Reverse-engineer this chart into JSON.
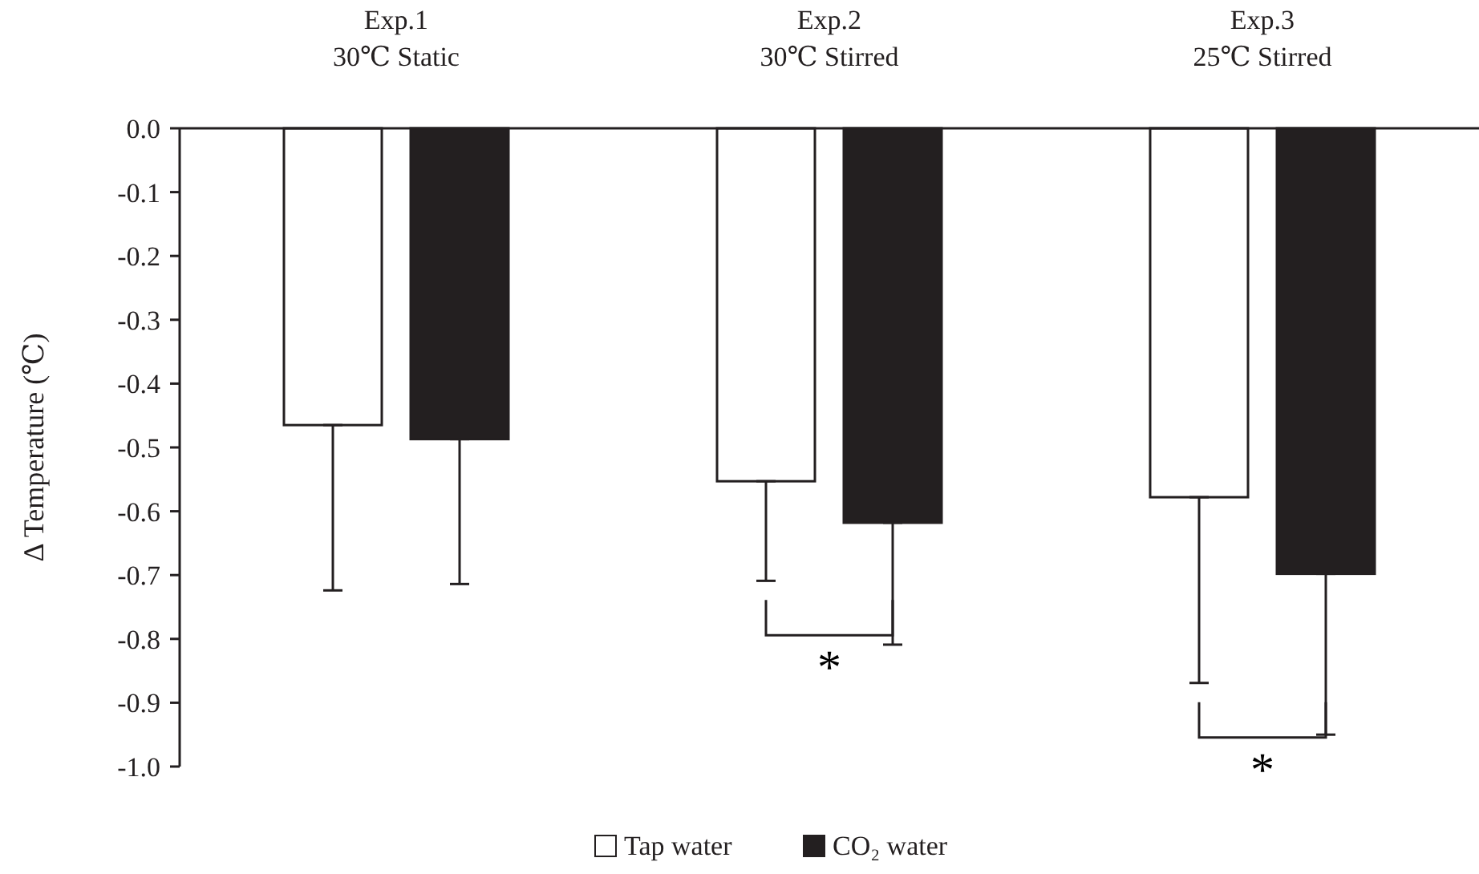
{
  "chart_data": {
    "type": "bar",
    "ylabel": "Δ Temperature (℃)",
    "categories": [
      "Exp.1\n30℃ Static",
      "Exp.2\n30℃ Stirred",
      "Exp.3\n25℃ Stirred"
    ],
    "series": [
      {
        "name": "Tap water",
        "color": "#ffffff",
        "values": [
          -0.465,
          -0.553,
          -0.578
        ],
        "errors": [
          [
            -0.724,
            -0.465
          ],
          [
            -0.709,
            -0.553
          ],
          [
            -0.869,
            -0.578
          ]
        ]
      },
      {
        "name": "CO₂ water",
        "color": "#231f20",
        "values": [
          -0.487,
          -0.618,
          -0.698
        ],
        "errors": [
          [
            -0.714,
            -0.487
          ],
          [
            -0.809,
            -0.618
          ],
          [
            -0.95,
            -0.698
          ]
        ]
      }
    ],
    "ylim": [
      -1.0,
      0.0
    ],
    "yticks": [
      {
        "value": 0,
        "label": "0.0"
      },
      {
        "value": -0.1,
        "label": "-0.1"
      },
      {
        "value": -0.2,
        "label": "-0.2"
      },
      {
        "value": -0.3,
        "label": "-0.3"
      },
      {
        "value": -0.4,
        "label": "-0.4"
      },
      {
        "value": -0.5,
        "label": "-0.5"
      },
      {
        "value": -0.6,
        "label": "-0.6"
      },
      {
        "value": -0.7,
        "label": "-0.7"
      },
      {
        "value": -0.8,
        "label": "-0.8"
      },
      {
        "value": -0.9,
        "label": "-0.9"
      },
      {
        "value": -1.0,
        "label": "-1.0"
      }
    ],
    "grid": false,
    "legend": "bottom",
    "annotations": [
      "*",
      "*"
    ]
  }
}
